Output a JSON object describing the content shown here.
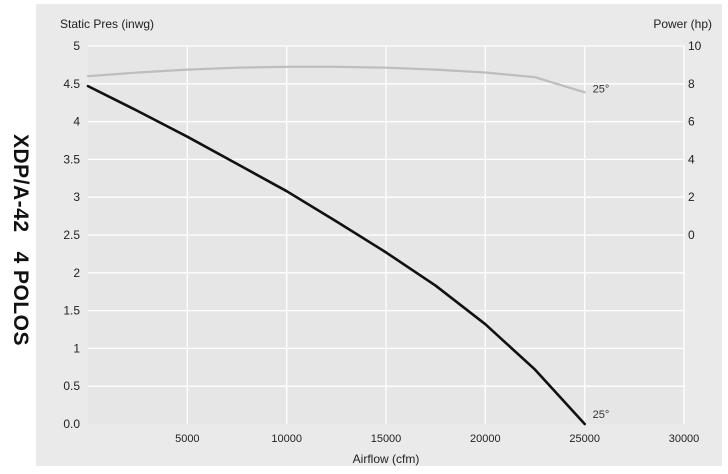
{
  "chart_data": {
    "type": "line",
    "side_title": "XDP/A-42   4 POLOS",
    "xlabel": "Airflow (cfm)",
    "ylabel_left": "Static Pres (inwg)",
    "ylabel_right": "Power (hp)",
    "xlim": [
      0,
      30000
    ],
    "ylim_left": [
      0,
      5
    ],
    "ylim_right_ticks": [
      0,
      2,
      4,
      6,
      8,
      10
    ],
    "x_ticks": [
      "5000",
      "10000",
      "15000",
      "20000",
      "25000",
      "30000"
    ],
    "y_left_ticks": [
      "0.0",
      "0.5",
      "1",
      "1.5",
      "2",
      "2.5",
      "3",
      "3.5",
      "4",
      "4.5",
      "5"
    ],
    "y_right_ticks": [
      "0",
      "2",
      "4",
      "6",
      "8",
      "10"
    ],
    "grid": true,
    "series": [
      {
        "role": "static-pressure",
        "axis": "left",
        "color": "#111111",
        "end_label": "25°",
        "x": [
          0,
          2500,
          5000,
          7500,
          10000,
          12500,
          15000,
          17500,
          20000,
          22500,
          25000
        ],
        "y": [
          4.47,
          4.14,
          3.8,
          3.44,
          3.08,
          2.68,
          2.27,
          1.83,
          1.32,
          0.72,
          0.0
        ]
      },
      {
        "role": "power",
        "axis": "right",
        "color": "#bdbdbd",
        "end_label": "25°",
        "x": [
          0,
          2500,
          5000,
          7500,
          10000,
          12500,
          15000,
          17500,
          20000,
          22500,
          25000
        ],
        "y": [
          8.4,
          8.6,
          8.75,
          8.85,
          8.9,
          8.9,
          8.85,
          8.75,
          8.6,
          8.35,
          7.55
        ]
      }
    ]
  }
}
